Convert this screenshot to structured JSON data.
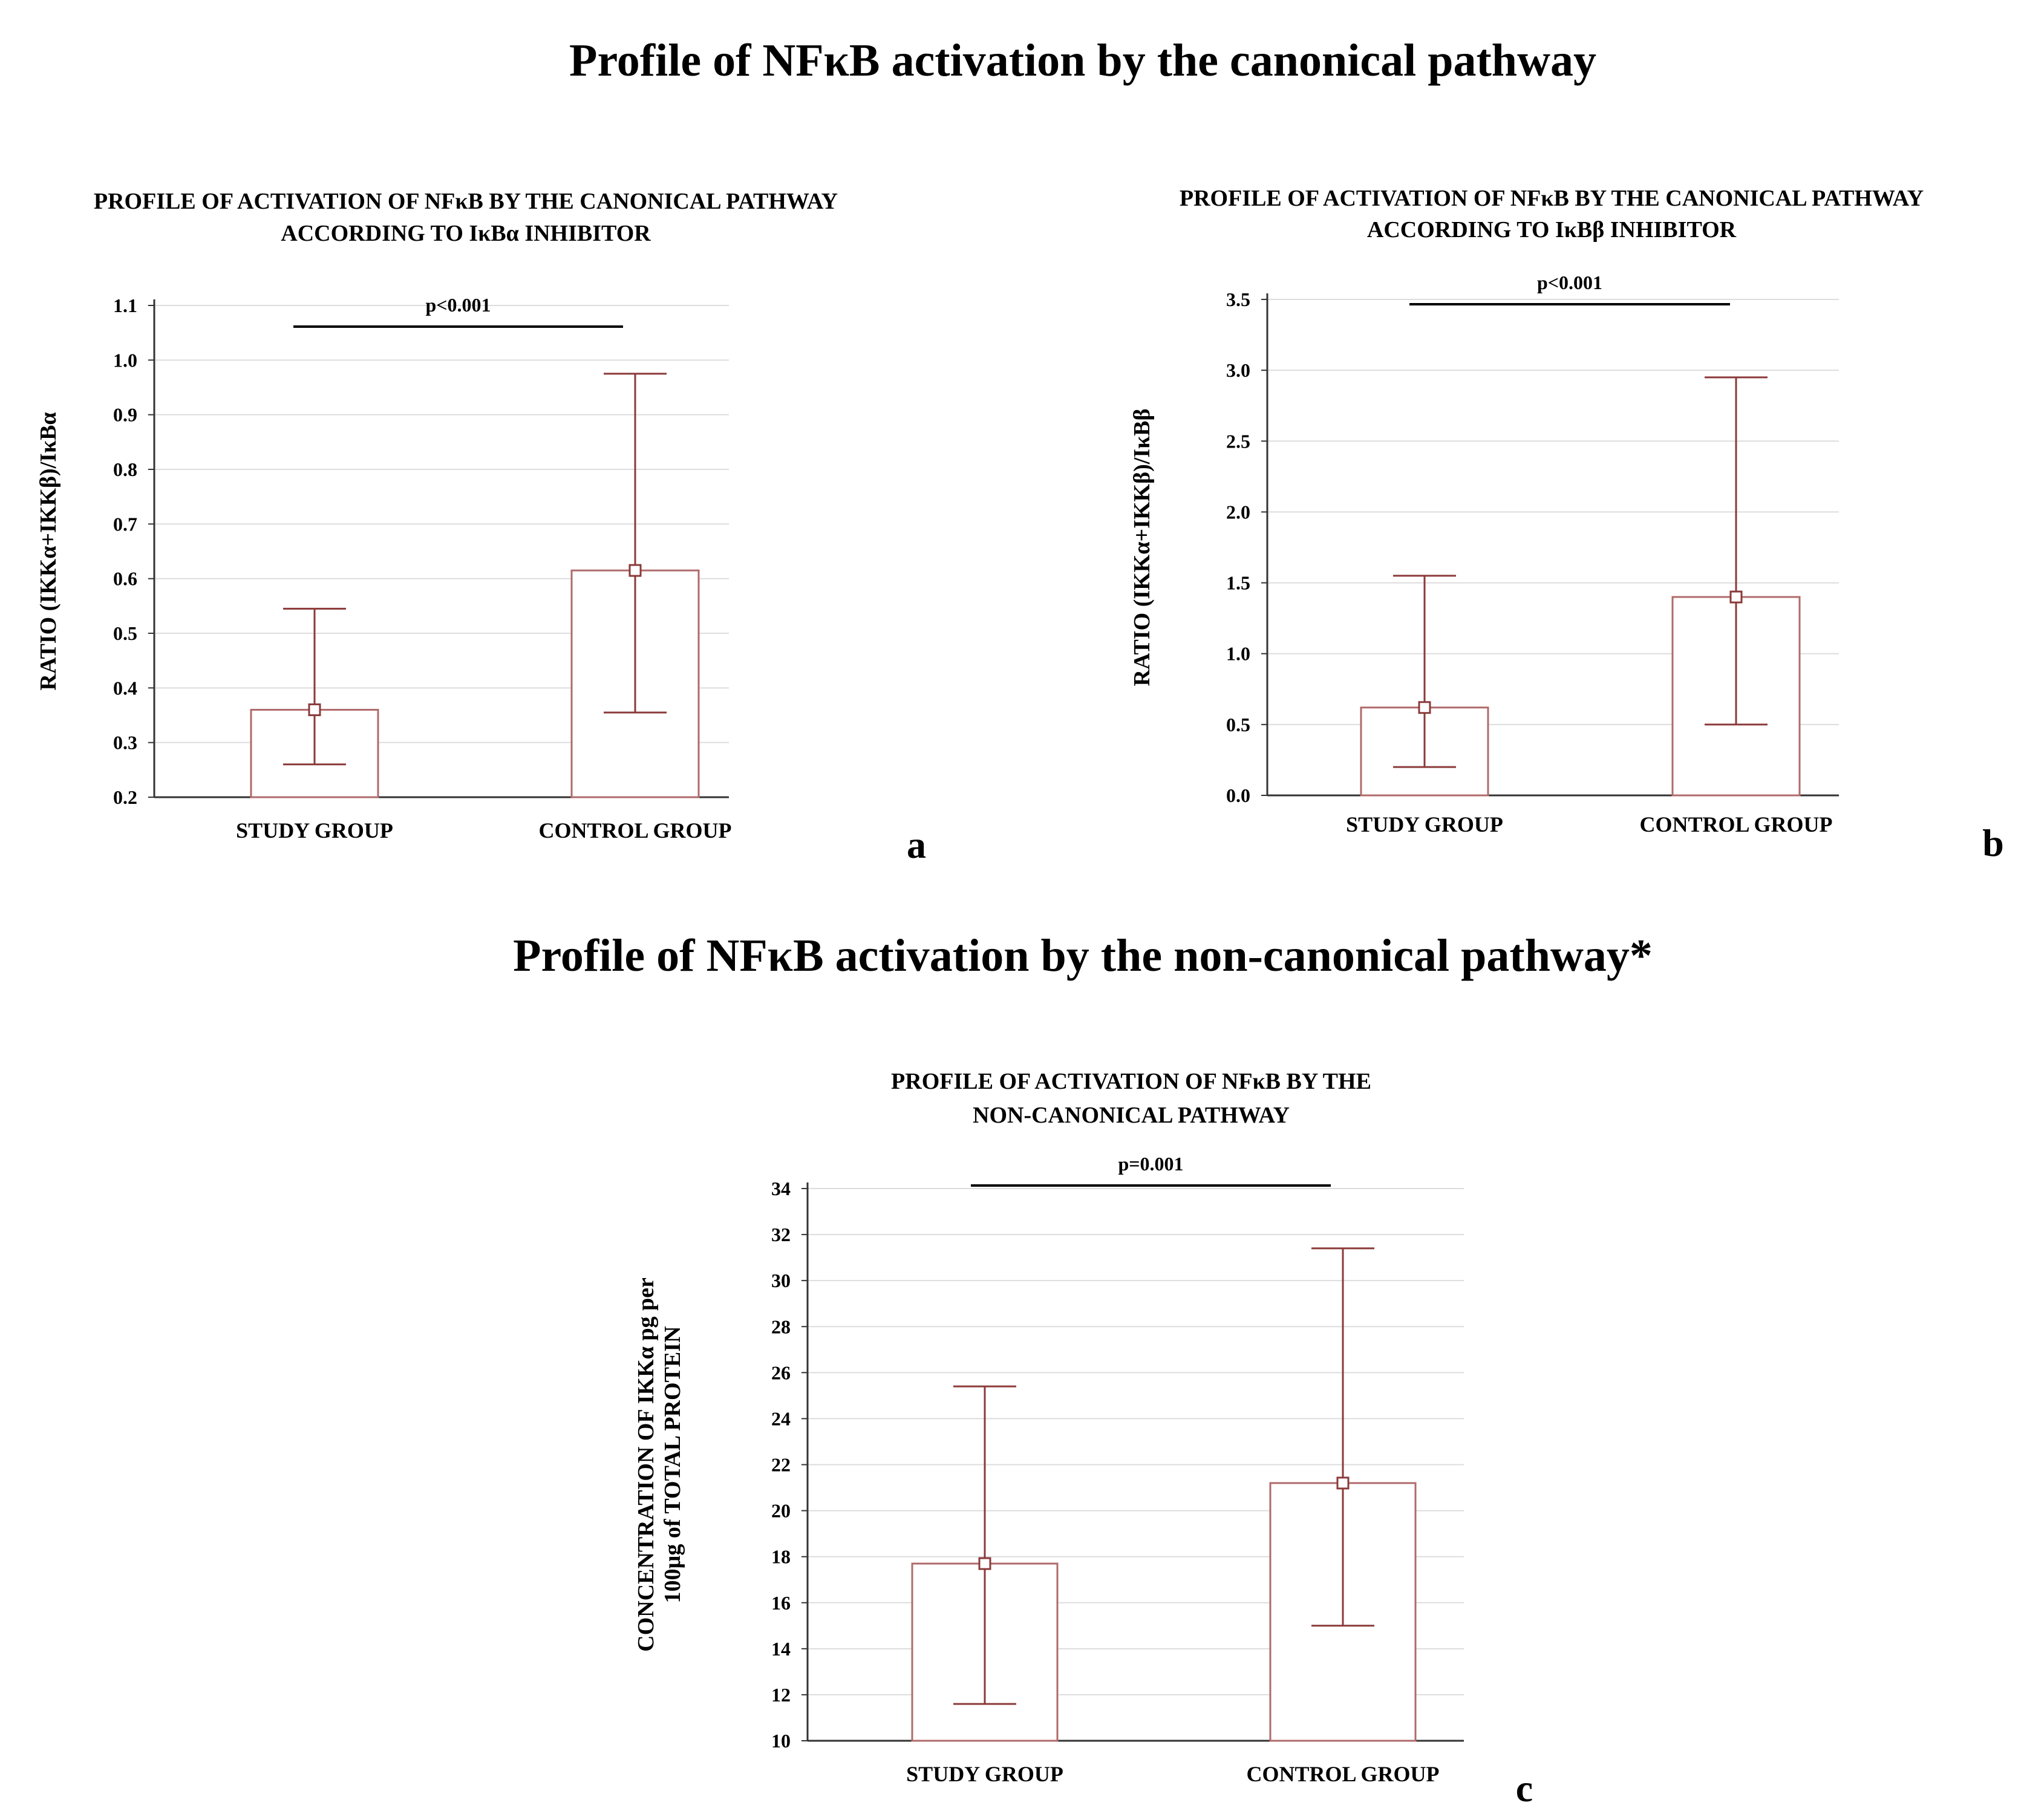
{
  "figure": {
    "canonical_title": "Profile of NFκB activation by the canonical pathway",
    "noncanonical_title": "Profile of NFκB activation by the non-canonical pathway*"
  },
  "colors": {
    "bar": "#b06a6a",
    "whisker": "#8b3a3a",
    "grid": "#dddddd",
    "axis": "#333333"
  },
  "chart_data": [
    {
      "type": "bar",
      "panel": "a",
      "title": [
        "PROFILE OF ACTIVATION OF NFκB BY THE CANONICAL PATHWAY",
        "ACCORDING TO IκBα INHIBITOR"
      ],
      "ylabel": "RATIO (IKKα+IKKβ)/IκBα",
      "categories": [
        "STUDY GROUP",
        "CONTROL GROUP"
      ],
      "values": [
        0.36,
        0.615
      ],
      "err_low": [
        0.26,
        0.355
      ],
      "err_high": [
        0.545,
        0.975
      ],
      "ylim": [
        0.2,
        1.1
      ],
      "yticks": [
        "0.2",
        "0.3",
        "0.4",
        "0.5",
        "0.6",
        "0.7",
        "0.8",
        "0.9",
        "1.0",
        "1.1"
      ],
      "annotation": "p<0.001",
      "grid": true
    },
    {
      "type": "bar",
      "panel": "b",
      "title": [
        "PROFILE OF ACTIVATION OF NFκB BY THE CANONICAL PATHWAY",
        "ACCORDING TO IκBβ INHIBITOR"
      ],
      "ylabel": "RATIO (IKKα+IKKβ)/IκBβ",
      "categories": [
        "STUDY GROUP",
        "CONTROL GROUP"
      ],
      "values": [
        0.62,
        1.4
      ],
      "err_low": [
        0.2,
        0.5
      ],
      "err_high": [
        1.55,
        2.95
      ],
      "ylim": [
        0.0,
        3.5
      ],
      "yticks": [
        "0.0",
        "0.5",
        "1.0",
        "1.5",
        "2.0",
        "2.5",
        "3.0",
        "3.5"
      ],
      "annotation": "p<0.001",
      "grid": true
    },
    {
      "type": "bar",
      "panel": "c",
      "title": [
        "PROFILE OF ACTIVATION OF NFκB BY THE",
        "NON-CANONICAL PATHWAY"
      ],
      "ylabel": [
        "CONCENTRATION OF IKKα pg per",
        "100µg of TOTAL PROTEIN"
      ],
      "categories": [
        "STUDY GROUP",
        "CONTROL GROUP"
      ],
      "values": [
        17.7,
        21.2
      ],
      "err_low": [
        11.6,
        15.0
      ],
      "err_high": [
        25.4,
        31.4
      ],
      "ylim": [
        10,
        34
      ],
      "yticks": [
        "10",
        "12",
        "14",
        "16",
        "18",
        "20",
        "22",
        "24",
        "26",
        "28",
        "30",
        "32",
        "34"
      ],
      "annotation": "p=0.001",
      "grid": true
    }
  ]
}
